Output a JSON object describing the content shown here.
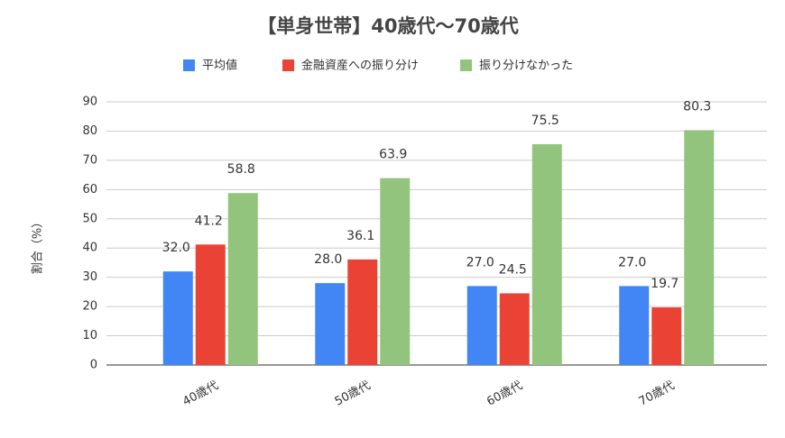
{
  "chart_data": {
    "type": "bar",
    "title": "【単身世帯】40歳代～70歳代",
    "y_label": "割合（%）",
    "categories": [
      "40歳代",
      "50歳代",
      "60歳代",
      "70歳代"
    ],
    "series": [
      {
        "name": "平均値",
        "color": "#4285f4",
        "values": [
          32,
          28,
          27,
          27
        ],
        "value_labels": [
          "32.0",
          "28.0",
          "27.0",
          "27.0"
        ]
      },
      {
        "name": "金融資産への振り分け",
        "color": "#ea4335",
        "values": [
          41.2,
          36.1,
          24.5,
          19.7
        ],
        "value_labels": [
          "41.2",
          "36.1",
          "24.5",
          "19.7"
        ]
      },
      {
        "name": "振り分けなかった",
        "color": "#93c47d",
        "values": [
          58.8,
          63.9,
          75.5,
          80.3
        ],
        "value_labels": [
          "58.8",
          "63.9",
          "75.5",
          "80.3"
        ]
      }
    ],
    "ylim": [
      0,
      90
    ],
    "yticks": [
      0,
      10,
      20,
      30,
      40,
      50,
      60,
      70,
      80,
      90
    ],
    "grid": true
  }
}
